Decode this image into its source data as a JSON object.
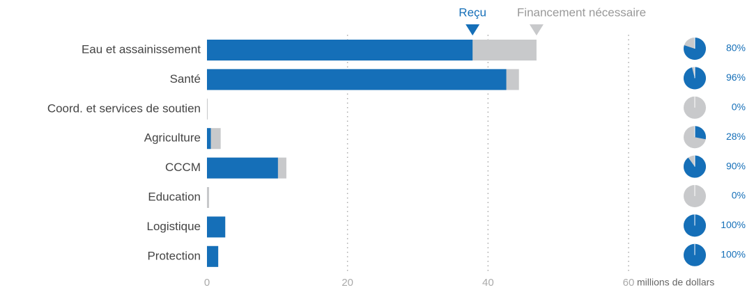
{
  "chart_data": {
    "type": "bar",
    "orientation": "horizontal",
    "categories": [
      "Eau et assainissement",
      "Santé",
      "Coord. et services de soutien",
      "Agriculture",
      "CCCM",
      "Education",
      "Logistique",
      "Protection"
    ],
    "series": [
      {
        "name": "Financement nécessaire",
        "color": "#c8c9cb",
        "values": [
          46.9,
          44.4,
          0.1,
          1.95,
          11.3,
          0.3,
          2.6,
          1.6
        ]
      },
      {
        "name": "Reçu",
        "color": "#156fb8",
        "values": [
          37.8,
          42.6,
          0,
          0.55,
          10.1,
          0,
          2.6,
          1.6
        ]
      }
    ],
    "percent_funded": {
      "values": [
        80,
        96,
        0,
        28,
        90,
        0,
        100,
        100
      ],
      "value_labels": [
        "80%",
        "96%",
        "0%",
        "28%",
        "90%",
        "0%",
        "100%",
        "100%"
      ]
    },
    "xlim": [
      0,
      60
    ],
    "xticks": [
      0,
      20,
      40,
      60
    ],
    "x_label": "millions de dollars",
    "grid": true
  }
}
